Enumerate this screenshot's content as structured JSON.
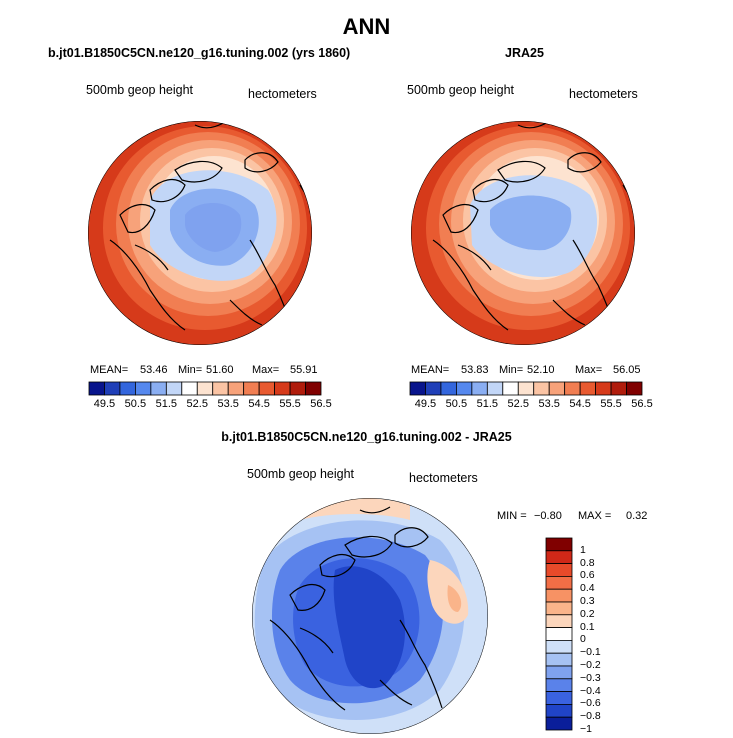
{
  "title": "ANN",
  "panels": [
    {
      "title": "b.jt01.B1850C5CN.ne120_g16.tuning.002 (yrs 1860)",
      "variable": "500mb geop height",
      "units": "hectometers",
      "mean_label": "MEAN=",
      "mean": "53.46",
      "min_label": "Min=",
      "min": "51.60",
      "max_label": "Max=",
      "max": "55.91"
    },
    {
      "title": "JRA25",
      "variable": "500mb geop height",
      "units": "hectometers",
      "mean_label": "MEAN=",
      "mean": "53.83",
      "min_label": "Min=",
      "min": "52.10",
      "max_label": "Max=",
      "max": "56.05"
    }
  ],
  "colorbar": {
    "colors": [
      "#08148c",
      "#1f3fb8",
      "#3366dd",
      "#5588ee",
      "#8aaef2",
      "#c2d6f7",
      "#ffffff",
      "#fde3d0",
      "#fbc4a4",
      "#f7a27a",
      "#f17e52",
      "#e85a30",
      "#d63a1a",
      "#b01c0c",
      "#800000"
    ],
    "ticks": [
      "49.5",
      "50.5",
      "51.5",
      "52.5",
      "53.5",
      "54.5",
      "55.5",
      "56.5"
    ]
  },
  "diff_panel": {
    "title": "b.jt01.B1850C5CN.ne120_g16.tuning.002 - JRA25",
    "variable": "500mb geop height",
    "units": "hectometers",
    "min_label": "MIN =",
    "min": "−0.80",
    "max_label": "MAX =",
    "max": "0.32",
    "colorbar": {
      "colors": [
        "#800000",
        "#d02818",
        "#e84a2a",
        "#f26e46",
        "#f79264",
        "#fab48a",
        "#fcd6bc",
        "#ffffff",
        "#cfe0f8",
        "#a6c2f3",
        "#7fa2ef",
        "#5a82ea",
        "#3a62e0",
        "#2044c8",
        "#0a1e9a"
      ],
      "ticks": [
        "1",
        "0.8",
        "0.6",
        "0.4",
        "0.3",
        "0.2",
        "0.1",
        "0",
        "−0.1",
        "−0.2",
        "−0.3",
        "−0.4",
        "−0.6",
        "−0.8",
        "−1"
      ]
    }
  }
}
